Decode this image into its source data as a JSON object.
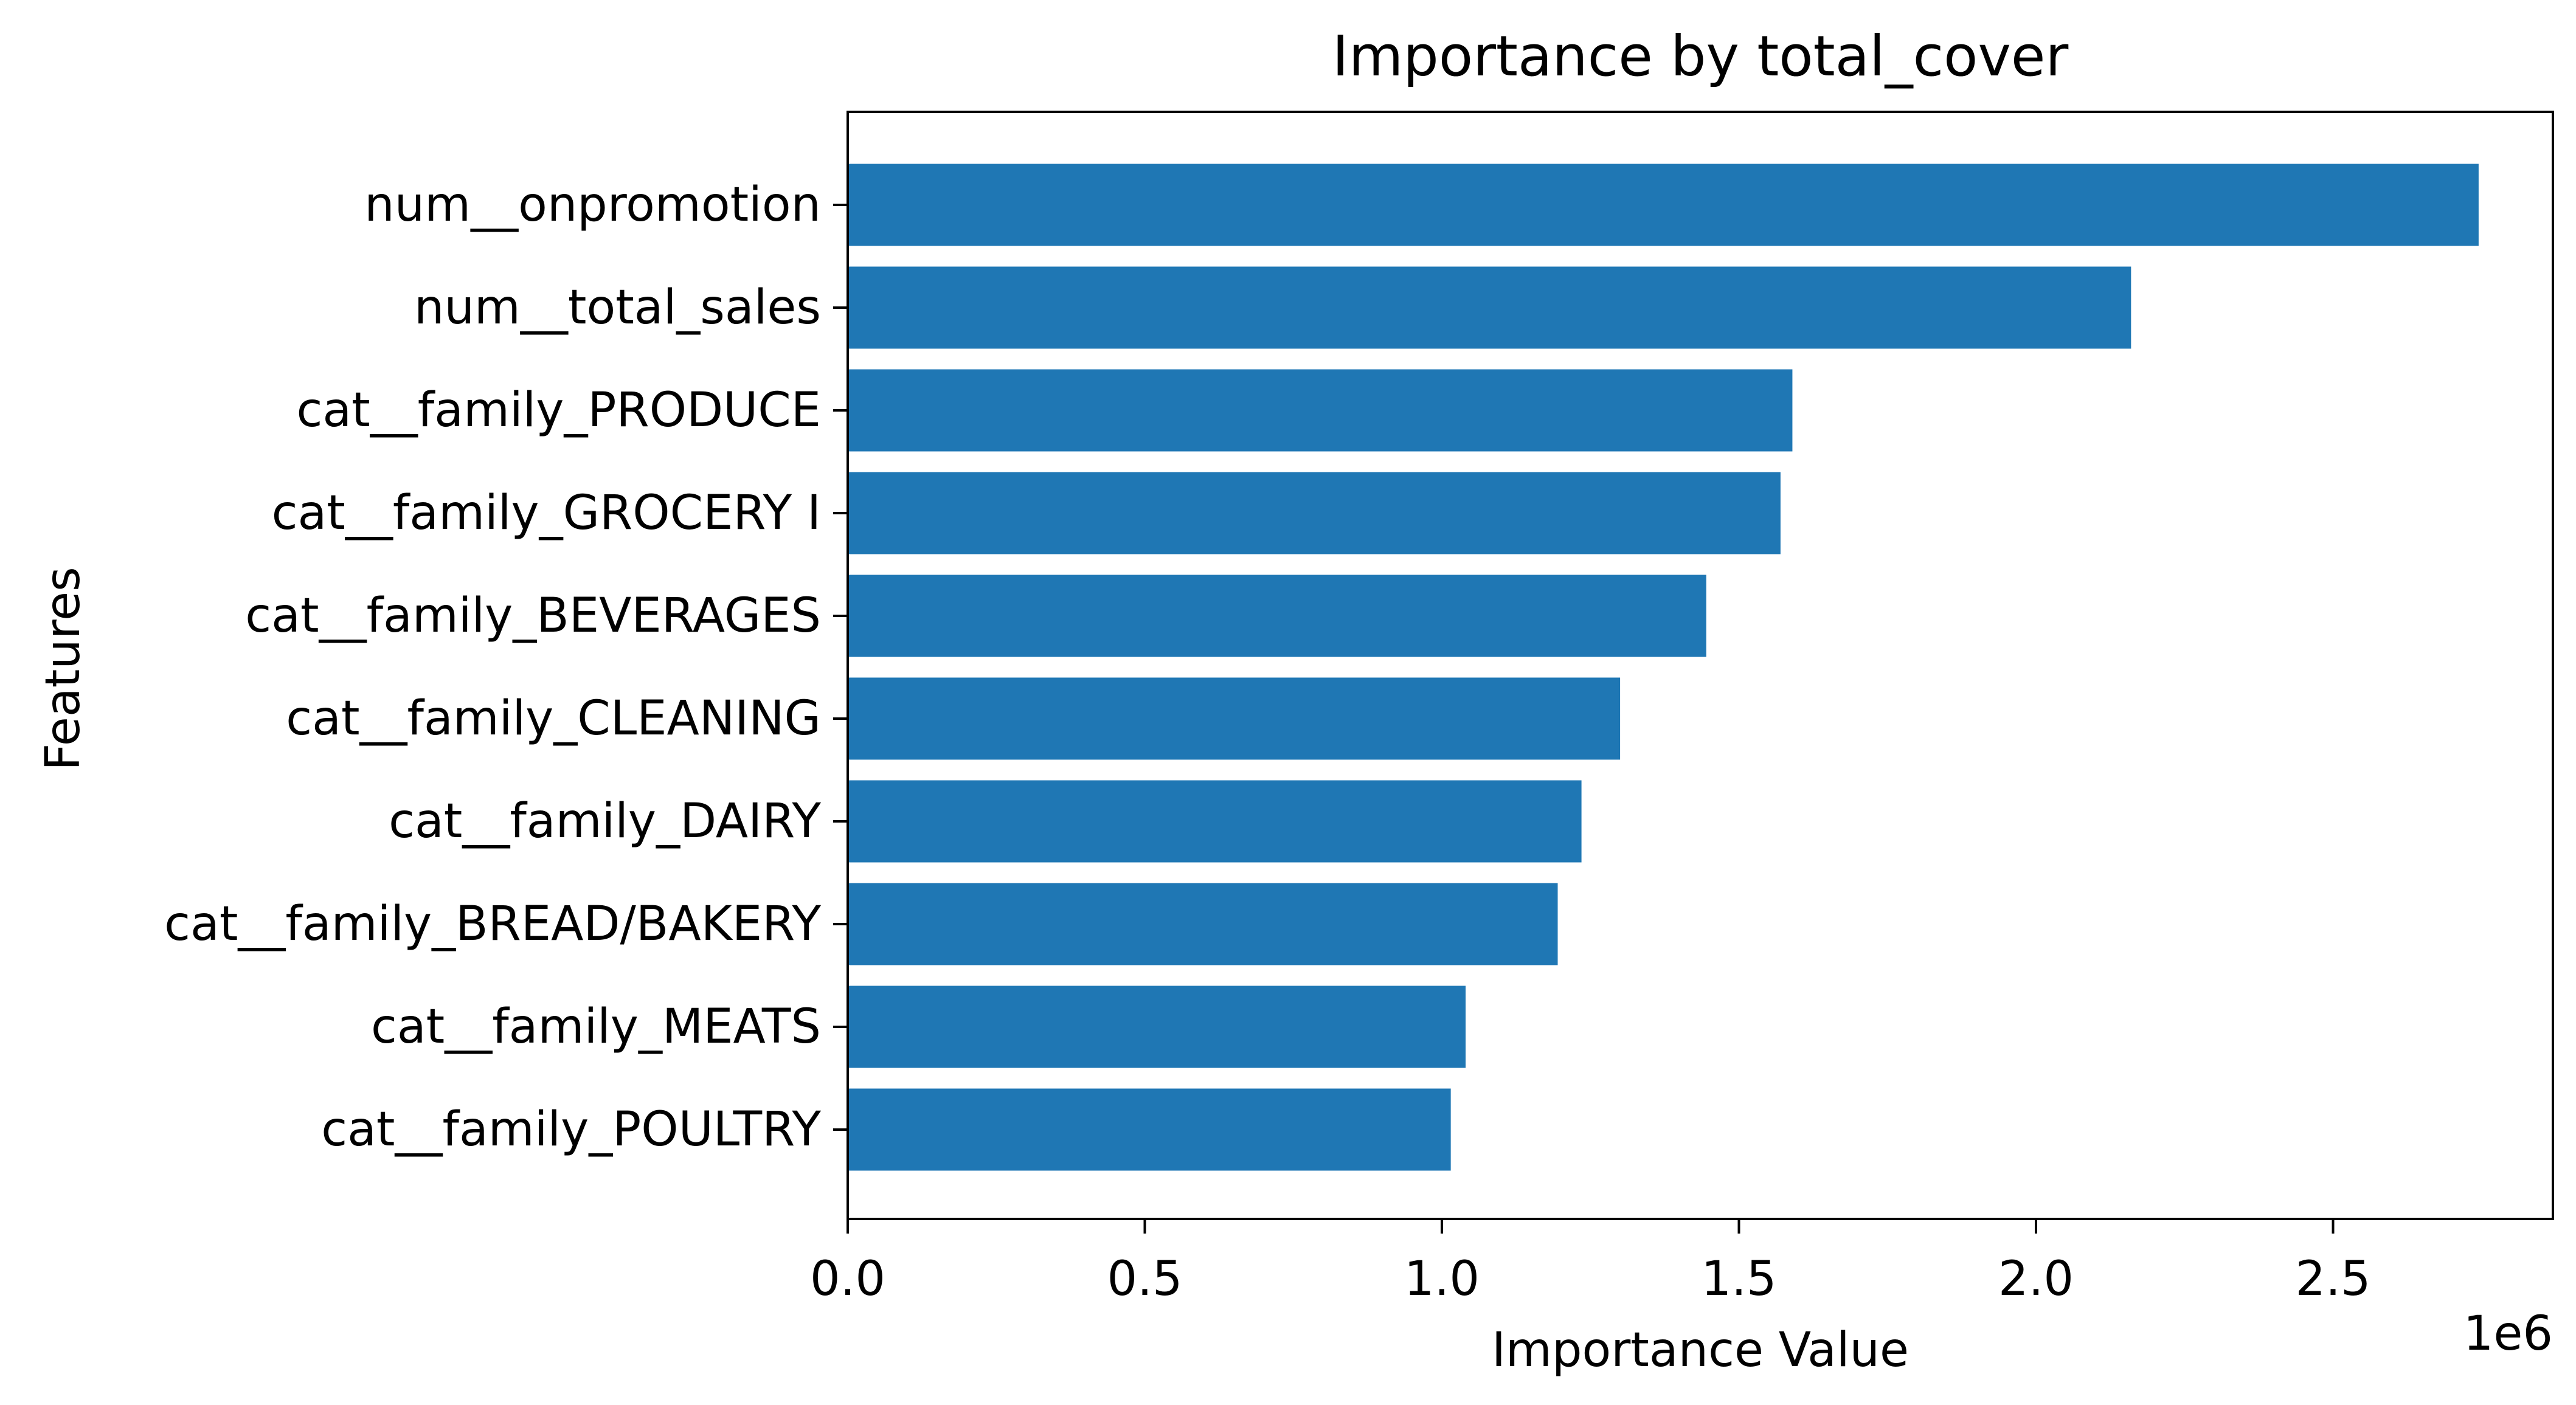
{
  "chart_data": {
    "type": "bar",
    "orientation": "horizontal",
    "title": "Importance by total_cover",
    "xlabel": "Importance Value",
    "ylabel": "Features",
    "x_offset_label": "1e6",
    "x_multiplier": 1000000,
    "xlim": [
      0,
      2.87
    ],
    "xticks": [
      0.0,
      0.5,
      1.0,
      1.5,
      2.0,
      2.5
    ],
    "xtick_labels": [
      "0.0",
      "0.5",
      "1.0",
      "1.5",
      "2.0",
      "2.5"
    ],
    "grid": false,
    "legend": "none",
    "bar_color": "#1f77b4",
    "categories": [
      "num__onpromotion",
      "num__total_sales",
      "cat__family_PRODUCE",
      "cat__family_GROCERY I",
      "cat__family_BEVERAGES",
      "cat__family_CLEANING",
      "cat__family_DAIRY",
      "cat__family_BREAD/BAKERY",
      "cat__family_MEATS",
      "cat__family_POULTRY"
    ],
    "values": [
      2.745,
      2.16,
      1.59,
      1.57,
      1.445,
      1.3,
      1.235,
      1.195,
      1.04,
      1.015
    ]
  }
}
